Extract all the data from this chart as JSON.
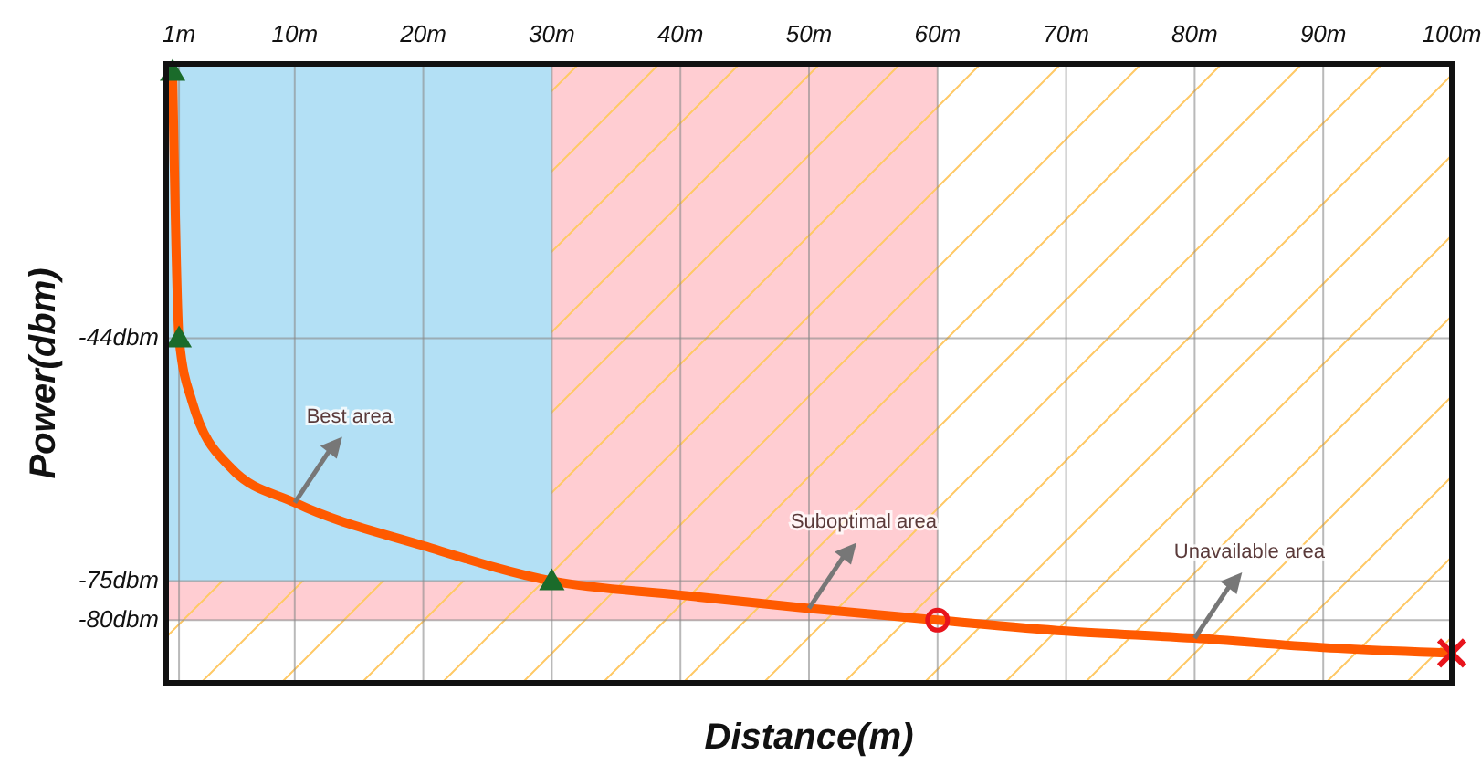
{
  "chart_data": {
    "type": "line",
    "xlabel": "Distance(m)",
    "ylabel": "Power(dbm)",
    "xlim": [
      0,
      100
    ],
    "ylim": [
      -88,
      -9
    ],
    "xticks": [
      {
        "value": 1,
        "label": "1m"
      },
      {
        "value": 10,
        "label": "10m"
      },
      {
        "value": 20,
        "label": "20m"
      },
      {
        "value": 30,
        "label": "30m"
      },
      {
        "value": 40,
        "label": "40m"
      },
      {
        "value": 50,
        "label": "50m"
      },
      {
        "value": 60,
        "label": "60m"
      },
      {
        "value": 70,
        "label": "70m"
      },
      {
        "value": 80,
        "label": "80m"
      },
      {
        "value": 90,
        "label": "90m"
      },
      {
        "value": 100,
        "label": "100m"
      }
    ],
    "yticks": [
      {
        "value": -44,
        "label": "-44dbm"
      },
      {
        "value": -75,
        "label": "-75dbm"
      },
      {
        "value": -80,
        "label": "-80dbm"
      }
    ],
    "grid": true,
    "series": [
      {
        "type": "line",
        "color": "#ff5a00",
        "marker": "none",
        "x": [
          0.5,
          1,
          2,
          5,
          10,
          20,
          30,
          40,
          50,
          60,
          70,
          80,
          90,
          100
        ],
        "values": [
          -10,
          -44,
          -52,
          -60.5,
          -65,
          -70.5,
          -75,
          -76.8,
          -78.5,
          -80,
          -81.4,
          -82.3,
          -83.5,
          -84.2
        ]
      },
      {
        "type": "scatter",
        "color": "#1a6b2a",
        "marker": "triangle",
        "x": [
          0.5,
          1,
          30
        ],
        "values": [
          -10,
          -44,
          -75
        ]
      },
      {
        "type": "scatter",
        "color": "#e8141c",
        "marker": "circle",
        "x": [
          60
        ],
        "values": [
          -80
        ]
      },
      {
        "type": "scatter",
        "color": "#e8141c",
        "marker": "cross",
        "x": [
          100
        ],
        "values": [
          -84.2
        ]
      }
    ],
    "bands": [
      {
        "axis": "x",
        "from": 0,
        "to": 30,
        "color": "#b3e0f5"
      },
      {
        "axis": "x",
        "from": 30,
        "to": 60,
        "color": "#ffcdd2"
      },
      {
        "axis": "y",
        "from": -75,
        "to": -80,
        "color": "#ffcdd2"
      }
    ],
    "annotations": [
      {
        "text": "Best area",
        "x": 10,
        "y": -65
      },
      {
        "text": "Suboptimal area",
        "x": 50,
        "y": -78.5
      },
      {
        "text": "Unavailable area",
        "x": 80,
        "y": -82.3
      }
    ]
  }
}
